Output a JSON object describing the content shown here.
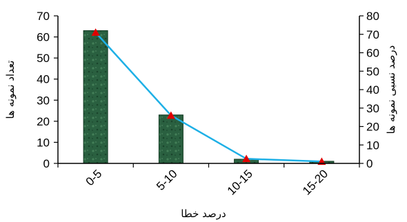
{
  "chart_data": {
    "type": "bar",
    "categories": [
      "0-5",
      "5-10",
      "10-15",
      "15-20"
    ],
    "series": [
      {
        "name": "",
        "type": "bar",
        "axis": "left",
        "values": [
          63,
          23,
          2,
          1
        ]
      },
      {
        "name": "",
        "type": "line",
        "axis": "right",
        "marker": "triangle",
        "values": [
          71,
          26,
          2.5,
          1
        ]
      }
    ],
    "title": "",
    "xlabel": "درصد خطا",
    "ylabel": "تعداد نمونه ها",
    "ylabel_right": "درصد نسبی نمونه ها",
    "ylim": [
      0,
      70
    ],
    "ylim_right": [
      0,
      80
    ],
    "yticks": [
      0,
      10,
      20,
      30,
      40,
      50,
      60,
      70
    ],
    "yticks_right": [
      0,
      10,
      20,
      30,
      40,
      50,
      60,
      70,
      80
    ],
    "grid": false,
    "legend": "none",
    "colors": {
      "bar_fill": "#2a6040",
      "bar_stroke": "#123a22",
      "line": "#1eb0e6",
      "marker": "#e00000"
    }
  }
}
